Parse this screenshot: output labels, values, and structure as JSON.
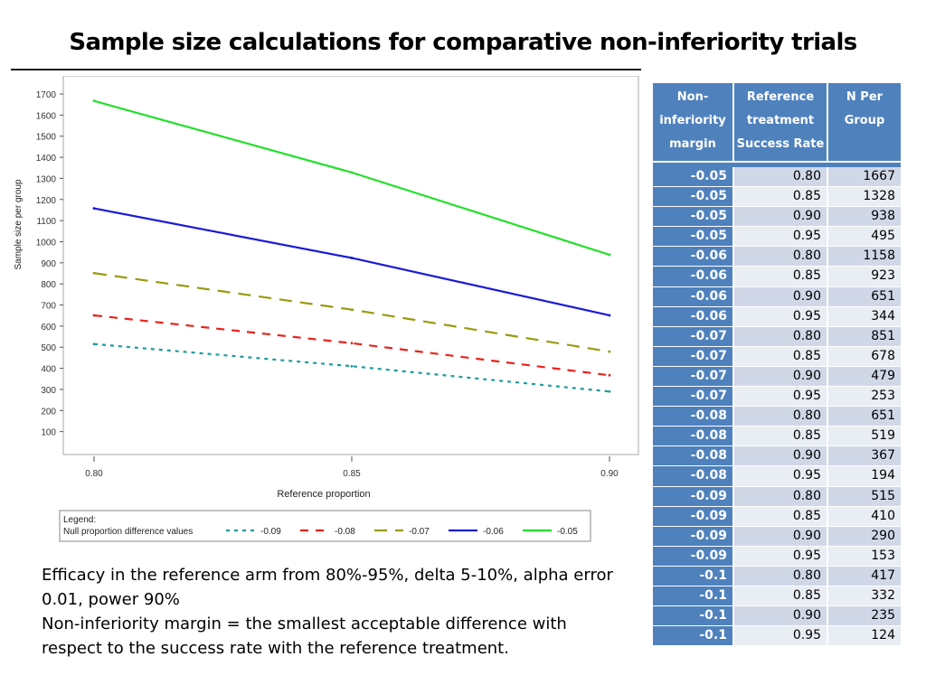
{
  "slide_title": "Sample size calculations for comparative non-inferiority trials",
  "chart_data": {
    "type": "line",
    "title": "",
    "xlabel": "Reference proportion",
    "ylabel": "Sample size per group",
    "xlim": [
      0.8,
      0.9
    ],
    "ylim": [
      0,
      1700
    ],
    "x_ticks": [
      "0.80",
      "0.85",
      "0.90"
    ],
    "y_ticks": [
      100,
      200,
      300,
      400,
      500,
      600,
      700,
      800,
      900,
      1000,
      1100,
      1200,
      1300,
      1400,
      1500,
      1600,
      1700
    ],
    "x": [
      0.8,
      0.85,
      0.9
    ],
    "series": [
      {
        "name": "-0.09",
        "values": [
          515,
          410,
          290
        ],
        "color": "#1f9b9b",
        "dash": "short"
      },
      {
        "name": "-0.08",
        "values": [
          651,
          519,
          367
        ],
        "color": "#e8221b",
        "dash": "medium"
      },
      {
        "name": "-0.07",
        "values": [
          851,
          678,
          479
        ],
        "color": "#9a9a10",
        "dash": "long"
      },
      {
        "name": "-0.06",
        "values": [
          1158,
          923,
          651
        ],
        "color": "#1a1ad8",
        "dash": "solid"
      },
      {
        "name": "-0.05",
        "values": [
          1667,
          1328,
          938
        ],
        "color": "#22e02a",
        "dash": "solid"
      }
    ],
    "legend": {
      "title": "Legend:",
      "label": "Null proportion difference values",
      "position": "bottom"
    }
  },
  "table": {
    "headers": [
      [
        "Non-",
        "inferiority",
        "margin"
      ],
      [
        "Reference",
        "treatment",
        "Success Rate"
      ],
      [
        "N Per",
        "Group"
      ]
    ],
    "rows": [
      [
        "-0.05",
        "0.80",
        "1667"
      ],
      [
        "-0.05",
        "0.85",
        "1328"
      ],
      [
        "-0.05",
        "0.90",
        "938"
      ],
      [
        "-0.05",
        "0.95",
        "495"
      ],
      [
        "-0.06",
        "0.80",
        "1158"
      ],
      [
        "-0.06",
        "0.85",
        "923"
      ],
      [
        "-0.06",
        "0.90",
        "651"
      ],
      [
        "-0.06",
        "0.95",
        "344"
      ],
      [
        "-0.07",
        "0.80",
        "851"
      ],
      [
        "-0.07",
        "0.85",
        "678"
      ],
      [
        "-0.07",
        "0.90",
        "479"
      ],
      [
        "-0.07",
        "0.95",
        "253"
      ],
      [
        "-0.08",
        "0.80",
        "651"
      ],
      [
        "-0.08",
        "0.85",
        "519"
      ],
      [
        "-0.08",
        "0.90",
        "367"
      ],
      [
        "-0.08",
        "0.95",
        "194"
      ],
      [
        "-0.09",
        "0.80",
        "515"
      ],
      [
        "-0.09",
        "0.85",
        "410"
      ],
      [
        "-0.09",
        "0.90",
        "290"
      ],
      [
        "-0.09",
        "0.95",
        "153"
      ],
      [
        "-0.1",
        "0.80",
        "417"
      ],
      [
        "-0.1",
        "0.85",
        "332"
      ],
      [
        "-0.1",
        "0.90",
        "235"
      ],
      [
        "-0.1",
        "0.95",
        "124"
      ]
    ]
  },
  "notes": {
    "line1": "Efficacy in the reference arm from 80%-95%, delta 5-10%, alpha error",
    "line2": "0.01, power 90%",
    "line3": "Non-inferiority margin = the smallest acceptable difference with",
    "line4": "respect to the success rate with the reference treatment."
  }
}
